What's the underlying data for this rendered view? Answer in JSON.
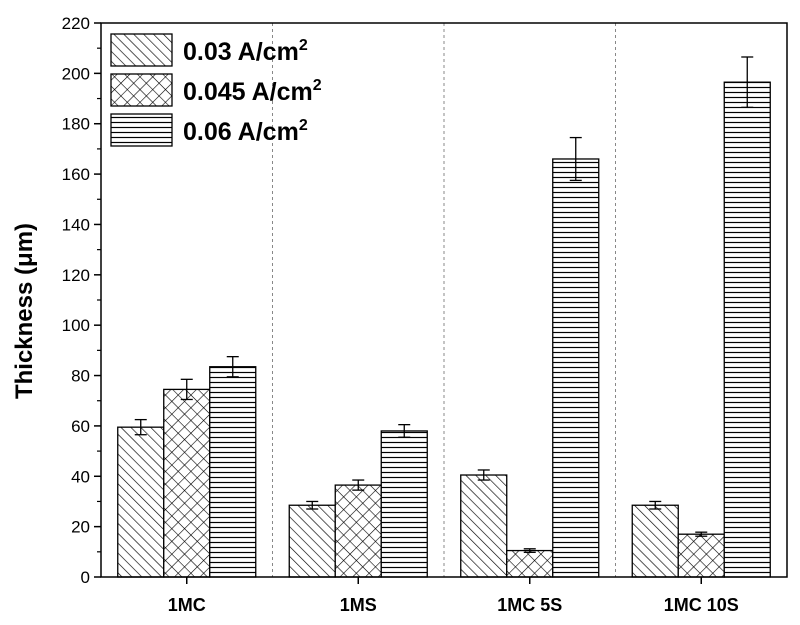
{
  "chart_data": {
    "type": "bar",
    "title": "",
    "xlabel": "",
    "ylabel": "Thickness (μm)",
    "ylim": [
      0,
      220
    ],
    "yticks": [
      0,
      20,
      40,
      60,
      80,
      100,
      120,
      140,
      160,
      180,
      200,
      220
    ],
    "categories": [
      "1MC",
      "1MS",
      "1MC 5S",
      "1MC 10S"
    ],
    "series": [
      {
        "name": "0.03 A/cm",
        "name_sup": "2",
        "pattern": "diagonal-hatch",
        "values": [
          59.5,
          28.5,
          40.5,
          28.5
        ],
        "errors": [
          3,
          1.5,
          2,
          1.5
        ]
      },
      {
        "name": "0.045 A/cm",
        "name_sup": "2",
        "pattern": "crosshatch",
        "values": [
          74.5,
          36.5,
          10.5,
          17
        ],
        "errors": [
          4,
          2,
          0.7,
          0.8
        ]
      },
      {
        "name": "0.06 A/cm",
        "name_sup": "2",
        "pattern": "horizontal-lines",
        "values": [
          83.5,
          58,
          166,
          196.5
        ],
        "errors": [
          4,
          2.5,
          8.5,
          10
        ]
      }
    ],
    "legend_position": "top-left",
    "grid": false,
    "category_separators": "dashed-vertical"
  }
}
